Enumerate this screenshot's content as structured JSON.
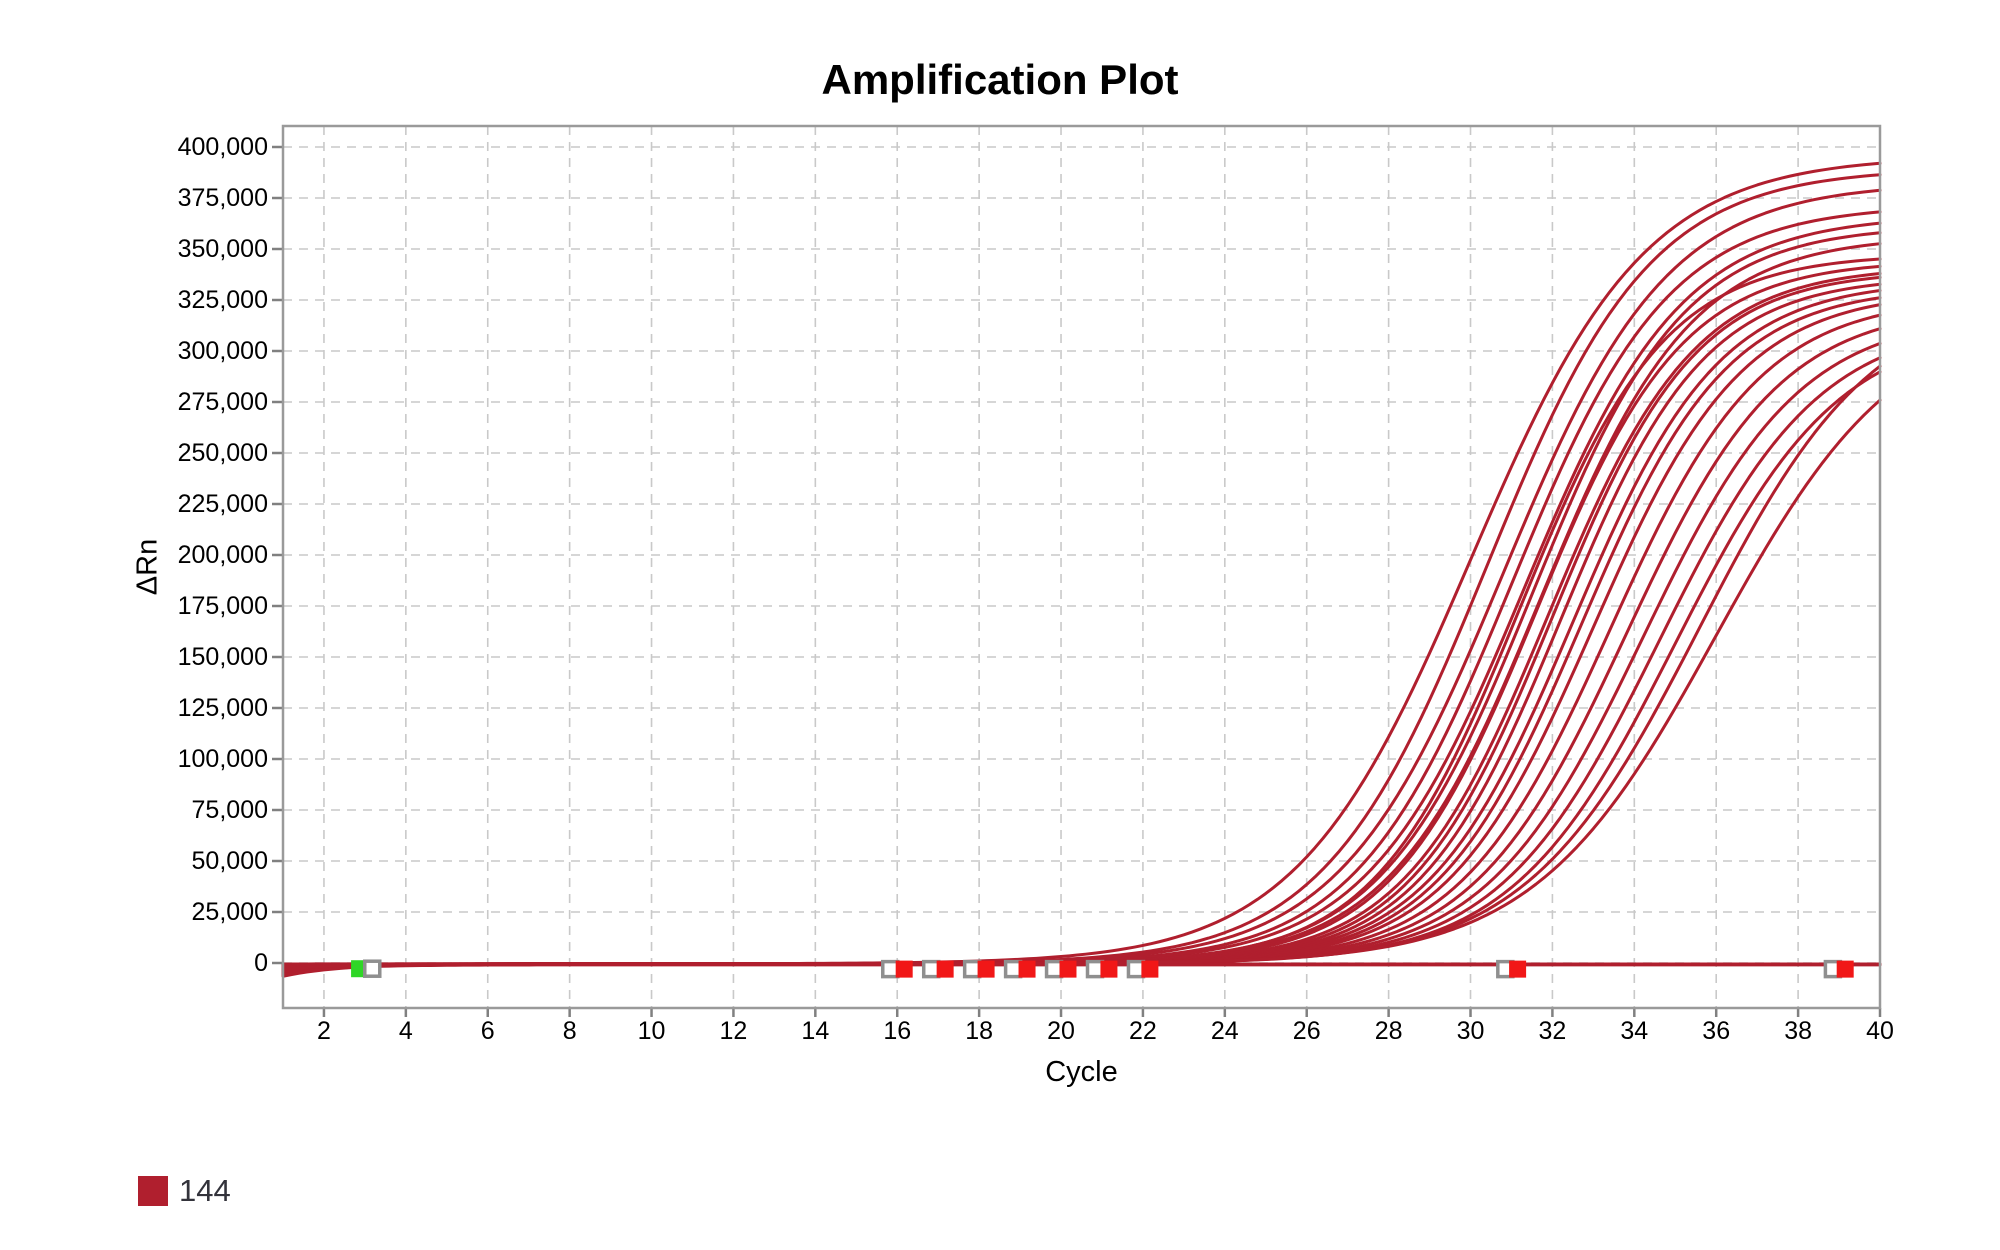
{
  "chart_data": {
    "type": "line",
    "title": "Amplification Plot",
    "xlabel": "Cycle",
    "ylabel": "ΔRn",
    "x_min": 1,
    "x_max": 40,
    "y_min": -22000,
    "y_max": 410000,
    "grid": "dashed",
    "grid_color": "#c9c9c9",
    "border_color": "#9a9a9a",
    "tick_color": "#808080",
    "series_color": "#b01f2e",
    "line_width": 3,
    "legend": [
      {
        "label": "144",
        "color": "#b01f2e"
      }
    ],
    "x_ticks": [
      {
        "v": 2,
        "label": "2"
      },
      {
        "v": 4,
        "label": "4"
      },
      {
        "v": 6,
        "label": "6"
      },
      {
        "v": 8,
        "label": "8"
      },
      {
        "v": 10,
        "label": "10"
      },
      {
        "v": 12,
        "label": "12"
      },
      {
        "v": 14,
        "label": "14"
      },
      {
        "v": 16,
        "label": "16"
      },
      {
        "v": 18,
        "label": "18"
      },
      {
        "v": 20,
        "label": "20"
      },
      {
        "v": 22,
        "label": "22"
      },
      {
        "v": 24,
        "label": "24"
      },
      {
        "v": 26,
        "label": "26"
      },
      {
        "v": 28,
        "label": "28"
      },
      {
        "v": 30,
        "label": "30"
      },
      {
        "v": 32,
        "label": "32"
      },
      {
        "v": 34,
        "label": "34"
      },
      {
        "v": 36,
        "label": "36"
      },
      {
        "v": 38,
        "label": "38"
      },
      {
        "v": 40,
        "label": "40"
      }
    ],
    "y_ticks": [
      {
        "v": 0,
        "label": "0"
      },
      {
        "v": 25000,
        "label": "25,000"
      },
      {
        "v": 50000,
        "label": "50,000"
      },
      {
        "v": 75000,
        "label": "75,000"
      },
      {
        "v": 100000,
        "label": "100,000"
      },
      {
        "v": 125000,
        "label": "125,000"
      },
      {
        "v": 150000,
        "label": "150,000"
      },
      {
        "v": 175000,
        "label": "175,000"
      },
      {
        "v": 200000,
        "label": "200,000"
      },
      {
        "v": 225000,
        "label": "225,000"
      },
      {
        "v": 250000,
        "label": "250,000"
      },
      {
        "v": 275000,
        "label": "275,000"
      },
      {
        "v": 300000,
        "label": "300,000"
      },
      {
        "v": 325000,
        "label": "325,000"
      },
      {
        "v": 350000,
        "label": "350,000"
      },
      {
        "v": 375000,
        "label": "375,000"
      },
      {
        "v": 400000,
        "label": "400,000"
      }
    ],
    "curves": [
      {
        "start": -6500,
        "mid": 30.0,
        "k": 0.47,
        "plateau": 396000
      },
      {
        "start": -5000,
        "mid": 30.4,
        "k": 0.5,
        "plateau": 390000
      },
      {
        "start": -4000,
        "mid": 30.8,
        "k": 0.5,
        "plateau": 383000
      },
      {
        "start": -3000,
        "mid": 31.0,
        "k": 0.52,
        "plateau": 372000
      },
      {
        "start": -2000,
        "mid": 31.3,
        "k": 0.52,
        "plateau": 367000
      },
      {
        "start": -5500,
        "mid": 31.5,
        "k": 0.54,
        "plateau": 362000
      },
      {
        "start": -1500,
        "mid": 31.7,
        "k": 0.54,
        "plateau": 357000
      },
      {
        "start": -4500,
        "mid": 31.2,
        "k": 0.56,
        "plateau": 348000
      },
      {
        "start": -2500,
        "mid": 31.6,
        "k": 0.56,
        "plateau": 345000
      },
      {
        "start": -3500,
        "mid": 31.9,
        "k": 0.56,
        "plateau": 342000
      },
      {
        "start": -1000,
        "mid": 32.0,
        "k": 0.57,
        "plateau": 340000
      },
      {
        "start": -6000,
        "mid": 32.2,
        "k": 0.57,
        "plateau": 337000
      },
      {
        "start": -500,
        "mid": 32.5,
        "k": 0.56,
        "plateau": 335000
      },
      {
        "start": -2800,
        "mid": 32.7,
        "k": 0.56,
        "plateau": 332000
      },
      {
        "start": -5200,
        "mid": 33.0,
        "k": 0.55,
        "plateau": 330000
      },
      {
        "start": -1800,
        "mid": 33.4,
        "k": 0.54,
        "plateau": 327000
      },
      {
        "start": -3800,
        "mid": 33.8,
        "k": 0.53,
        "plateau": 323000
      },
      {
        "start": -800,
        "mid": 34.2,
        "k": 0.52,
        "plateau": 319000
      },
      {
        "start": -4200,
        "mid": 34.6,
        "k": 0.51,
        "plateau": 316000
      },
      {
        "start": -2200,
        "mid": 35.0,
        "k": 0.5,
        "plateau": 314000
      },
      {
        "start": -5800,
        "mid": 35.6,
        "k": 0.47,
        "plateau": 330000
      },
      {
        "start": -3200,
        "mid": 36.0,
        "k": 0.45,
        "plateau": 322000
      }
    ],
    "flat_curves": [
      {
        "start": -4800,
        "level": -900
      },
      {
        "start": -1200,
        "level": -500
      }
    ],
    "marker_colors": {
      "red": "#f11717",
      "green": "#2fd626",
      "open_border": "#8f8f8f",
      "open_fill": "#ffffff"
    },
    "markers": [
      {
        "x": 2.87,
        "y": -2800,
        "style": "filled",
        "color": "green"
      },
      {
        "x": 3.18,
        "y": -2800,
        "style": "open"
      },
      {
        "x": 15.83,
        "y": -3000,
        "style": "open"
      },
      {
        "x": 16.17,
        "y": -3000,
        "style": "filled",
        "color": "red"
      },
      {
        "x": 16.83,
        "y": -3000,
        "style": "open"
      },
      {
        "x": 17.17,
        "y": -3000,
        "style": "filled",
        "color": "red"
      },
      {
        "x": 17.83,
        "y": -3000,
        "style": "open"
      },
      {
        "x": 18.17,
        "y": -3000,
        "style": "filled",
        "color": "red"
      },
      {
        "x": 18.83,
        "y": -3000,
        "style": "open"
      },
      {
        "x": 19.17,
        "y": -3000,
        "style": "filled",
        "color": "red"
      },
      {
        "x": 19.83,
        "y": -3000,
        "style": "open"
      },
      {
        "x": 20.17,
        "y": -3000,
        "style": "filled",
        "color": "red"
      },
      {
        "x": 20.83,
        "y": -3000,
        "style": "open"
      },
      {
        "x": 21.17,
        "y": -3000,
        "style": "filled",
        "color": "red"
      },
      {
        "x": 21.83,
        "y": -3000,
        "style": "open"
      },
      {
        "x": 22.17,
        "y": -3000,
        "style": "filled",
        "color": "red"
      },
      {
        "x": 30.85,
        "y": -3000,
        "style": "open"
      },
      {
        "x": 31.15,
        "y": -3000,
        "style": "filled",
        "color": "red"
      },
      {
        "x": 38.85,
        "y": -3000,
        "style": "open"
      },
      {
        "x": 39.15,
        "y": -3000,
        "style": "filled",
        "color": "red"
      }
    ]
  }
}
